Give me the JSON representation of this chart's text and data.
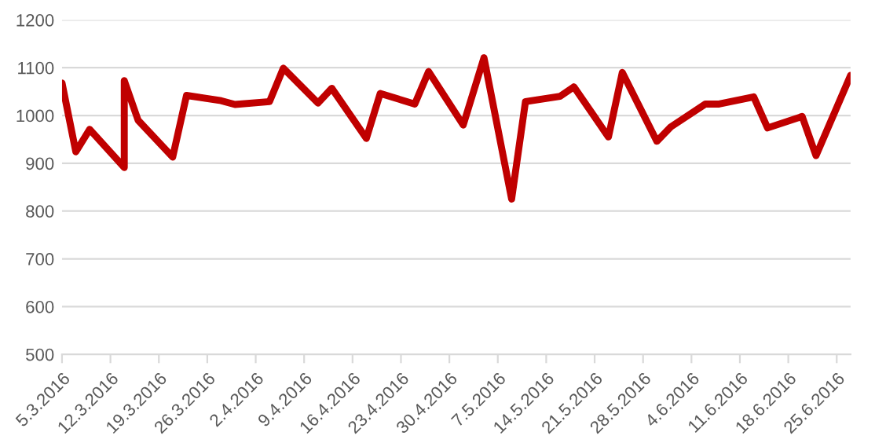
{
  "chart_data": {
    "type": "line",
    "x": [
      "2016-03-05",
      "2016-03-07",
      "2016-03-09",
      "2016-03-14",
      "2016-03-14",
      "2016-03-16",
      "2016-03-21",
      "2016-03-23",
      "2016-03-28",
      "2016-03-30",
      "2016-04-04",
      "2016-04-06",
      "2016-04-11",
      "2016-04-13",
      "2016-04-18",
      "2016-04-20",
      "2016-04-25",
      "2016-04-27",
      "2016-05-02",
      "2016-05-05",
      "2016-05-09",
      "2016-05-11",
      "2016-05-16",
      "2016-05-18",
      "2016-05-23",
      "2016-05-25",
      "2016-05-30",
      "2016-06-01",
      "2016-06-06",
      "2016-06-08",
      "2016-06-13",
      "2016-06-15",
      "2016-06-20",
      "2016-06-22",
      "2016-06-27"
    ],
    "series": [
      {
        "color": "#c00000",
        "values": [
          1068,
          924,
          971,
          891,
          1073,
          990,
          913,
          1042,
          1031,
          1023,
          1029,
          1099,
          1026,
          1057,
          952,
          1046,
          1024,
          1092,
          980,
          1121,
          825,
          1029,
          1040,
          1060,
          955,
          1090,
          946,
          976,
          1024,
          1024,
          1039,
          974,
          998,
          916,
          1084
        ]
      }
    ],
    "xlim": [
      "2016-03-05",
      "2016-06-27"
    ],
    "xticks": [
      {
        "value": "2016-03-05",
        "label": "5.3.2016"
      },
      {
        "value": "2016-03-12",
        "label": "12.3.2016"
      },
      {
        "value": "2016-03-19",
        "label": "19.3.2016"
      },
      {
        "value": "2016-03-26",
        "label": "26.3.2016"
      },
      {
        "value": "2016-04-02",
        "label": "2.4.2016"
      },
      {
        "value": "2016-04-09",
        "label": "9.4.2016"
      },
      {
        "value": "2016-04-16",
        "label": "16.4.2016"
      },
      {
        "value": "2016-04-23",
        "label": "23.4.2016"
      },
      {
        "value": "2016-04-30",
        "label": "30.4.2016"
      },
      {
        "value": "2016-05-07",
        "label": "7.5.2016"
      },
      {
        "value": "2016-05-14",
        "label": "14.5.2016"
      },
      {
        "value": "2016-05-21",
        "label": "21.5.2016"
      },
      {
        "value": "2016-05-28",
        "label": "28.5.2016"
      },
      {
        "value": "2016-06-04",
        "label": "4.6.2016"
      },
      {
        "value": "2016-06-11",
        "label": "11.6.2016"
      },
      {
        "value": "2016-06-18",
        "label": "18.6.2016"
      },
      {
        "value": "2016-06-25",
        "label": "25.6.2016"
      }
    ],
    "ylim": [
      500,
      1200
    ],
    "yticks": [
      500,
      600,
      700,
      800,
      900,
      1000,
      1100,
      1200
    ],
    "grid": "y",
    "legend": false,
    "marker": "none",
    "line_style": "solid"
  }
}
